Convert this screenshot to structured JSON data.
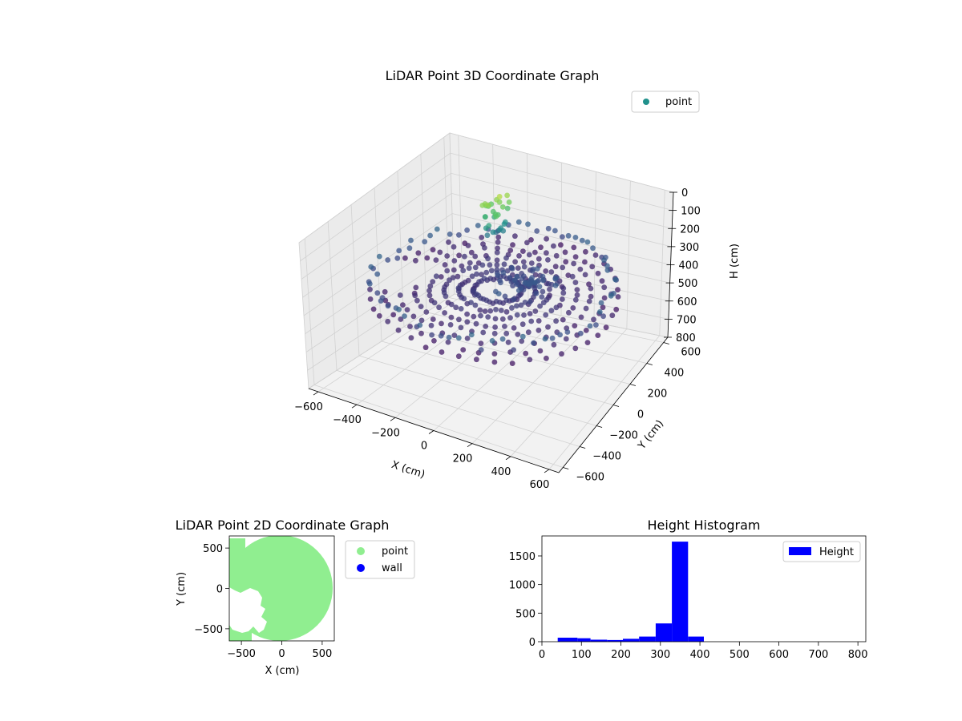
{
  "chart_data": [
    {
      "type": "scatter3d",
      "title": "LiDAR Point 3D Coordinate Graph",
      "xlabel": "X (cm)",
      "ylabel": "Y (cm)",
      "zlabel": "H (cm)",
      "xlim": [
        -650,
        650
      ],
      "ylim": [
        -650,
        650
      ],
      "zlim": [
        800,
        0
      ],
      "xticks": [
        "−600",
        "−400",
        "−200",
        "0",
        "200",
        "400",
        "600"
      ],
      "yticks": [
        "−600",
        "−400",
        "−200",
        "0",
        "200",
        "400",
        "600"
      ],
      "zticks": [
        "0",
        "100",
        "200",
        "300",
        "400",
        "500",
        "600",
        "700",
        "800"
      ],
      "colormap": "viridis",
      "legend": [
        {
          "label": "point",
          "color": "#21918c"
        }
      ],
      "legend_position": "top-right",
      "grid": true
    },
    {
      "type": "scatter",
      "title": "LiDAR Point 2D Coordinate Graph",
      "xlabel": "X (cm)",
      "ylabel": "Y (cm)",
      "xlim": [
        -650,
        650
      ],
      "ylim": [
        -650,
        650
      ],
      "xticks": [
        "−500",
        "0",
        "500"
      ],
      "yticks": [
        "500",
        "0",
        "−500"
      ],
      "series": [
        {
          "name": "point",
          "color": "#90ee90"
        },
        {
          "name": "wall",
          "color": "#0000ff"
        }
      ],
      "legend_position": "outside-right"
    },
    {
      "type": "bar",
      "title": "Height Histogram",
      "xlabel": "",
      "ylabel": "",
      "xlim": [
        0,
        820
      ],
      "ylim": [
        0,
        1850
      ],
      "xticks": [
        "0",
        "100",
        "200",
        "300",
        "400",
        "500",
        "600",
        "700",
        "800"
      ],
      "yticks": [
        "0",
        "500",
        "1000",
        "1500"
      ],
      "bins": [
        {
          "x0": 40,
          "x1": 90,
          "value": 70
        },
        {
          "x0": 90,
          "x1": 123,
          "value": 60
        },
        {
          "x0": 123,
          "x1": 165,
          "value": 35
        },
        {
          "x0": 165,
          "x1": 205,
          "value": 30
        },
        {
          "x0": 205,
          "x1": 246,
          "value": 50
        },
        {
          "x0": 246,
          "x1": 288,
          "value": 90
        },
        {
          "x0": 288,
          "x1": 329,
          "value": 320
        },
        {
          "x0": 329,
          "x1": 370,
          "value": 1750
        },
        {
          "x0": 370,
          "x1": 410,
          "value": 90
        }
      ],
      "legend": [
        {
          "label": "Height",
          "color": "#0000ff"
        }
      ],
      "legend_position": "top-right"
    }
  ]
}
